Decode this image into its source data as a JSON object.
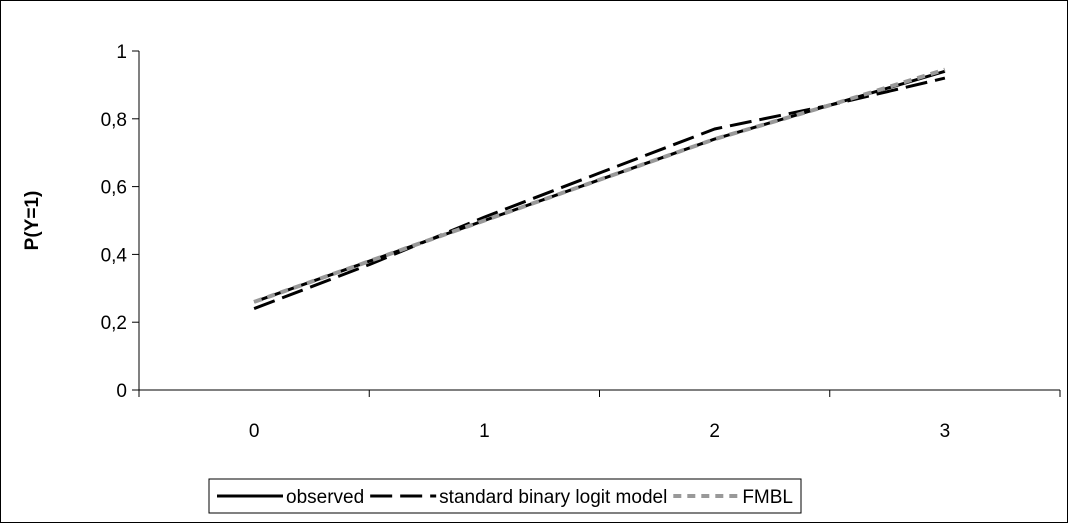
{
  "chart_data": {
    "type": "line",
    "title": "",
    "xlabel": "",
    "ylabel": "P(Y=1)",
    "categories": [
      "0",
      "1",
      "2",
      "3"
    ],
    "x": [
      0,
      0.5,
      1,
      1.5,
      2,
      2.5,
      3
    ],
    "ylim": [
      0,
      1
    ],
    "yticks": [
      "0",
      "0,2",
      "0,4",
      "0,6",
      "0,8",
      "1"
    ],
    "ytick_values": [
      0,
      0.2,
      0.4,
      0.6,
      0.8,
      1
    ],
    "grid": false,
    "legend_position": "bottom",
    "series": [
      {
        "name": "observed",
        "values": [
          0.26,
          0.38,
          0.5,
          0.62,
          0.74,
          0.84,
          0.94
        ],
        "color": "#000000",
        "dash": "solid"
      },
      {
        "name": "standard binary logit model",
        "values": [
          0.24,
          0.37,
          0.51,
          0.64,
          0.77,
          0.84,
          0.92
        ],
        "color": "#000000",
        "dash": "long-dash"
      },
      {
        "name": "FMBL",
        "values": [
          0.26,
          0.38,
          0.5,
          0.62,
          0.74,
          0.84,
          0.945
        ],
        "color": "#999999",
        "dash": "short-dash"
      }
    ]
  }
}
